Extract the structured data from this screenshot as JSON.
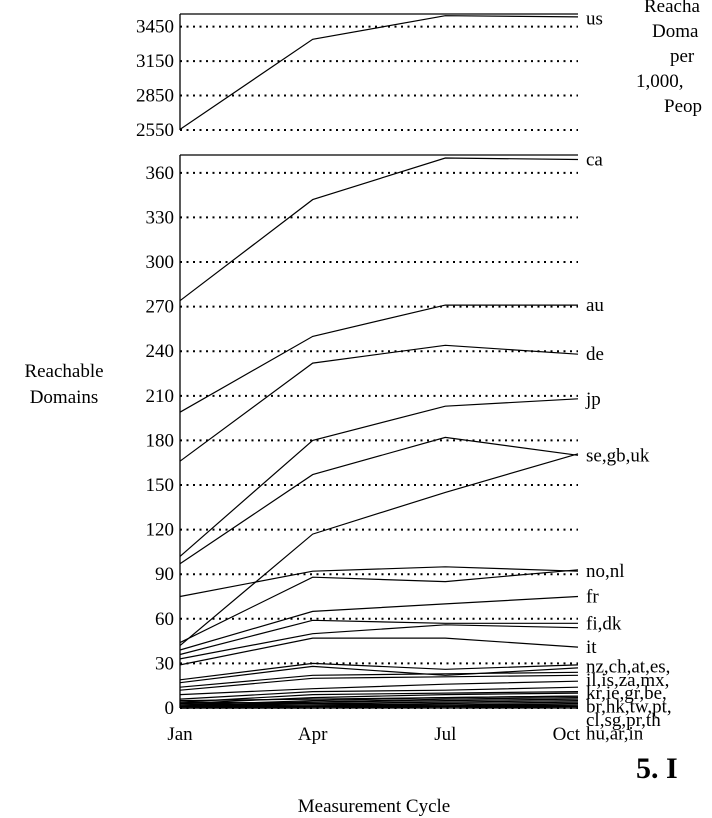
{
  "chart_data": {
    "type": "line",
    "xlabel": "Measurement Cycle",
    "ylabel": [
      "Reachable",
      "Domains"
    ],
    "categories": [
      "Jan",
      "Apr",
      "Jul",
      "Oct"
    ],
    "top_panel": {
      "ylim": [
        2550,
        3560
      ],
      "ticks": [
        2550,
        2850,
        3150,
        3450
      ],
      "series": [
        {
          "name": "us",
          "values": [
            2555,
            3340,
            3545,
            3535
          ]
        }
      ]
    },
    "main_panel": {
      "ylim": [
        0,
        372
      ],
      "ticks": [
        0,
        30,
        60,
        90,
        120,
        150,
        180,
        210,
        240,
        270,
        300,
        330,
        360
      ],
      "series": [
        {
          "name": "ca",
          "values": [
            274,
            342,
            370,
            369
          ]
        },
        {
          "name": "au",
          "values": [
            199,
            250,
            271,
            271
          ]
        },
        {
          "name": "de",
          "values": [
            166,
            232,
            244,
            238
          ]
        },
        {
          "name": "jp",
          "values": [
            102,
            180,
            203,
            208
          ]
        },
        {
          "name": "se",
          "values": [
            97,
            157,
            182,
            170
          ]
        },
        {
          "name": "gb",
          "values": [
            42,
            117,
            145,
            171
          ]
        },
        {
          "name": "uk",
          "values": [
            75,
            92,
            95,
            92
          ]
        },
        {
          "name": "no",
          "values": [
            44,
            88,
            85,
            93
          ]
        },
        {
          "name": "nl",
          "values": [
            39,
            65,
            70,
            75
          ]
        },
        {
          "name": "fr",
          "values": [
            36,
            59,
            57,
            57
          ]
        },
        {
          "name": "fi",
          "values": [
            33,
            50,
            56,
            54
          ]
        },
        {
          "name": "dk",
          "values": [
            29,
            47,
            47,
            41
          ]
        },
        {
          "name": "it",
          "values": [
            19,
            30,
            26,
            29
          ]
        },
        {
          "name": "nz",
          "values": [
            17,
            28,
            22,
            27
          ]
        },
        {
          "name": "ch",
          "values": [
            14,
            22,
            23,
            24
          ]
        },
        {
          "name": "at",
          "values": [
            12,
            20,
            21,
            22
          ]
        },
        {
          "name": "es",
          "values": [
            9,
            13,
            16,
            18
          ]
        },
        {
          "name": "il",
          "values": [
            6,
            11,
            12,
            14
          ]
        },
        {
          "name": "is",
          "values": [
            4,
            9,
            10,
            11
          ]
        },
        {
          "name": "za",
          "values": [
            3,
            7,
            9,
            10
          ]
        },
        {
          "name": "mx",
          "values": [
            2,
            5,
            7,
            8
          ]
        },
        {
          "name": "kr",
          "values": [
            1,
            4,
            6,
            7
          ]
        },
        {
          "name": "ie",
          "values": [
            5,
            6,
            7,
            8
          ]
        },
        {
          "name": "gr",
          "values": [
            3,
            4,
            5,
            6
          ]
        },
        {
          "name": "be",
          "values": [
            2,
            3,
            4,
            5
          ]
        },
        {
          "name": "br",
          "values": [
            1,
            2,
            3,
            4
          ]
        },
        {
          "name": "hk",
          "values": [
            1,
            1,
            2,
            3
          ]
        },
        {
          "name": "tw",
          "values": [
            0,
            1,
            2,
            2
          ]
        },
        {
          "name": "pt",
          "values": [
            0,
            1,
            1,
            2
          ]
        },
        {
          "name": "cl",
          "values": [
            4,
            3,
            2,
            1
          ]
        },
        {
          "name": "sg",
          "values": [
            2,
            2,
            2,
            1
          ]
        },
        {
          "name": "pr",
          "values": [
            1,
            1,
            1,
            1
          ]
        },
        {
          "name": "th",
          "values": [
            0,
            0,
            1,
            0
          ]
        }
      ]
    },
    "end_labels": [
      {
        "text": "us",
        "panel": "top",
        "y": 3520
      },
      {
        "text": "ca",
        "panel": "main",
        "y": 369
      },
      {
        "text": "au",
        "panel": "main",
        "y": 271
      },
      {
        "text": "de",
        "panel": "main",
        "y": 238
      },
      {
        "text": "jp",
        "panel": "main",
        "y": 208
      },
      {
        "text": "se,gb,uk",
        "panel": "main",
        "y": 170
      },
      {
        "text": "no,nl",
        "panel": "main",
        "y": 92
      },
      {
        "text": "fr",
        "panel": "main",
        "y": 75
      },
      {
        "text": "fi,dk",
        "panel": "main",
        "y": 57
      },
      {
        "text": "it",
        "panel": "main",
        "y": 41
      },
      {
        "text": "nz,ch,at,es,",
        "panel": "main",
        "y": 28
      },
      {
        "text": "il,is,za,mx,",
        "panel": "main",
        "y": 19
      },
      {
        "text": "kr,ie,gr,be,",
        "panel": "main",
        "y": 10
      },
      {
        "text": "br,hk,tw,pt,",
        "panel": "main",
        "y": 1
      },
      {
        "text": "cl,sg,pr,th",
        "panel": "main",
        "y": -8
      },
      {
        "text": "hu,ar,in",
        "panel": "main",
        "y": -17
      }
    ]
  },
  "side_label": [
    "Reacha",
    "Doma",
    "per",
    "1,000,",
    "Peop"
  ],
  "section_number": "5.  I"
}
